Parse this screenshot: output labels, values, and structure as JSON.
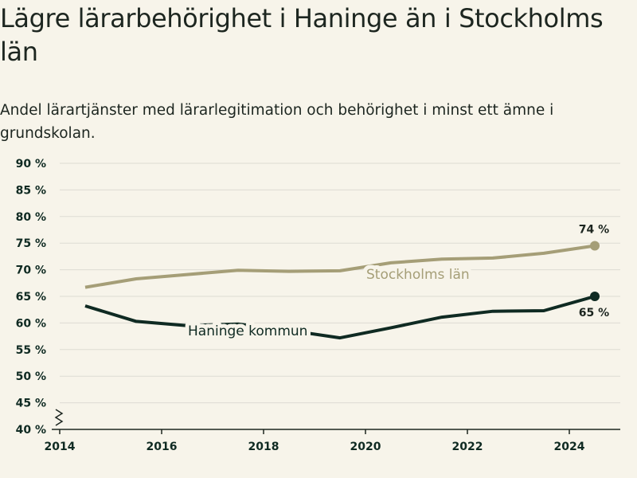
{
  "title": "Lägre lärarbehörighet i Haninge än i Stockholms län",
  "subtitle": "Andel lärartjänster med lärarlegitimation och behörighet i minst ett ämne i grundskolan.",
  "colors": {
    "background": "#f7f4ea",
    "stockholm": "#a59e77",
    "haninge": "#0f2a22",
    "grid": "#dddbd3",
    "axis": "#1d2620"
  },
  "chart_data": {
    "type": "line",
    "x": [
      2014.5,
      2015.5,
      2016.5,
      2017.5,
      2018.5,
      2019.5,
      2020.5,
      2021.5,
      2022.5,
      2023.5,
      2024.5
    ],
    "series": [
      {
        "name": "Stockholms län",
        "values": [
          66.7,
          68.3,
          69.1,
          69.9,
          69.7,
          69.8,
          71.3,
          72.0,
          72.2,
          73.1,
          74.5
        ],
        "end_label": "74 %",
        "color": "#a59e77"
      },
      {
        "name": "Haninge kommun",
        "values": [
          63.2,
          60.3,
          59.5,
          59.8,
          58.6,
          57.2,
          59.1,
          61.1,
          62.2,
          62.3,
          65.0
        ],
        "end_label": "65 %",
        "color": "#0f2a22"
      }
    ],
    "xlim": [
      2014,
      2025
    ],
    "ylim": [
      40,
      90
    ],
    "y_ticks": [
      40,
      45,
      50,
      55,
      60,
      65,
      70,
      75,
      80,
      85,
      90
    ],
    "y_tick_labels": [
      "40 %",
      "45 %",
      "50 %",
      "55 %",
      "60 %",
      "65 %",
      "70 %",
      "75 %",
      "80 %",
      "85 %",
      "90 %"
    ],
    "x_ticks": [
      2014,
      2016,
      2018,
      2020,
      2022,
      2024
    ],
    "x_tick_labels": [
      "2014",
      "2016",
      "2018",
      "2020",
      "2022",
      "2024"
    ],
    "grid": true,
    "axis_break": true
  }
}
